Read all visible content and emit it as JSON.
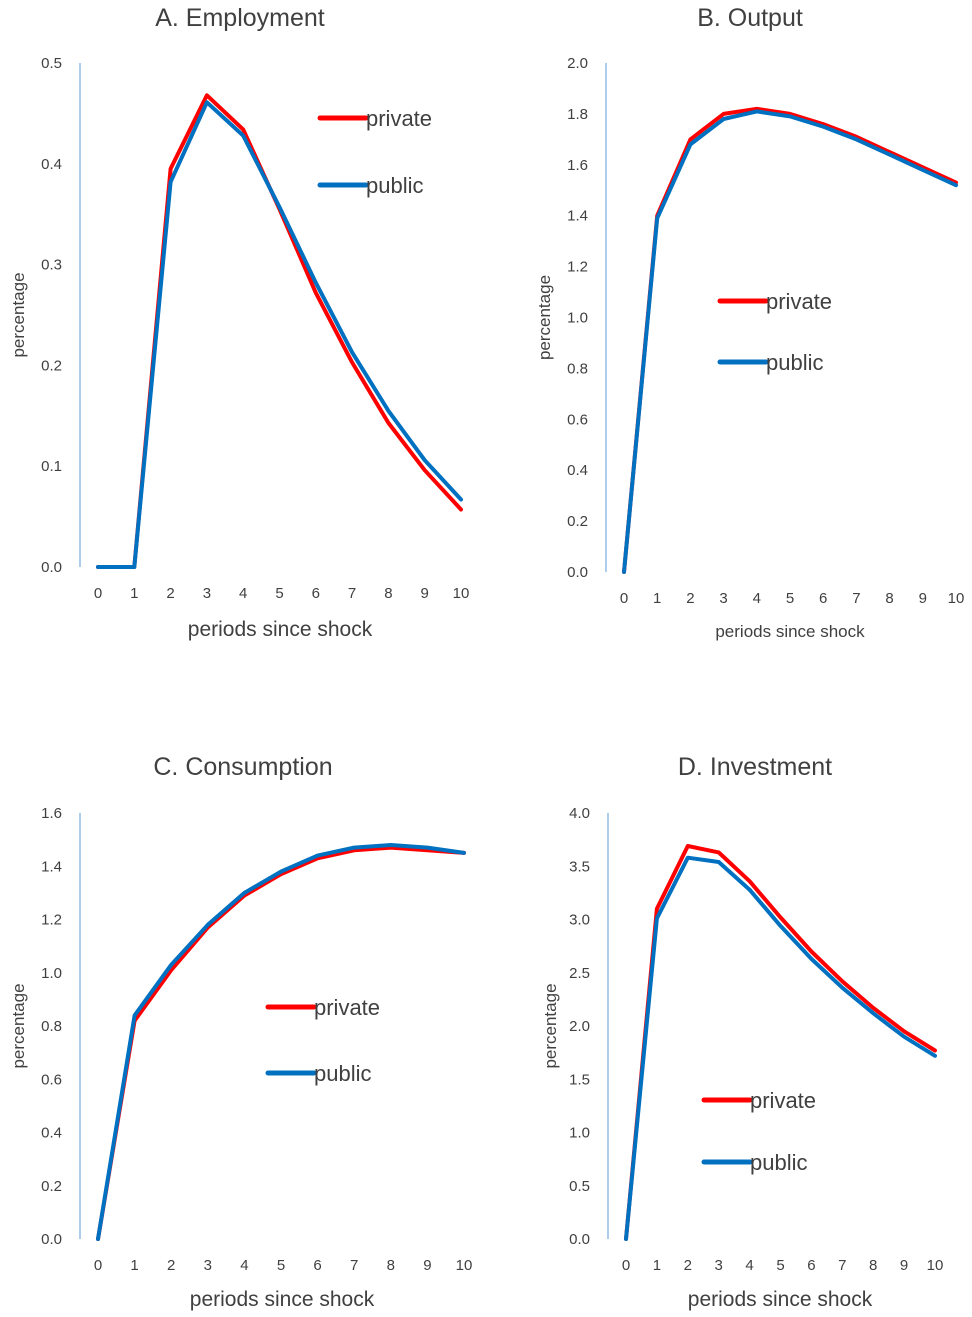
{
  "chart_data": [
    {
      "type": "line",
      "title": "A. Employment",
      "xlabel": "periods since shock",
      "ylabel": "percentage",
      "x": [
        0,
        1,
        2,
        3,
        4,
        5,
        6,
        7,
        8,
        9,
        10
      ],
      "ylim": [
        0,
        0.5
      ],
      "yticks": [
        "0.0",
        "0.1",
        "0.2",
        "0.3",
        "0.4",
        "0.5"
      ],
      "grid": false,
      "series": [
        {
          "name": "private",
          "color": "#ff0000",
          "values": [
            0,
            0,
            0.395,
            0.468,
            0.434,
            0.355,
            0.272,
            0.203,
            0.143,
            0.096,
            0.057
          ]
        },
        {
          "name": "public",
          "color": "#0070c0",
          "values": [
            0,
            0,
            0.382,
            0.461,
            0.428,
            0.357,
            0.282,
            0.213,
            0.155,
            0.106,
            0.067
          ]
        }
      ]
    },
    {
      "type": "line",
      "title": "B. Output",
      "xlabel": "periods since shock",
      "ylabel": "percentage",
      "x": [
        0,
        1,
        2,
        3,
        4,
        5,
        6,
        7,
        8,
        9,
        10
      ],
      "ylim": [
        0,
        2.0
      ],
      "yticks": [
        "0.0",
        "0.2",
        "0.4",
        "0.6",
        "0.8",
        "1.0",
        "1.2",
        "1.4",
        "1.6",
        "1.8",
        "2.0"
      ],
      "grid": false,
      "series": [
        {
          "name": "private",
          "color": "#ff0000",
          "values": [
            0,
            1.4,
            1.7,
            1.8,
            1.82,
            1.8,
            1.76,
            1.71,
            1.65,
            1.59,
            1.53
          ]
        },
        {
          "name": "public",
          "color": "#0070c0",
          "values": [
            0,
            1.39,
            1.68,
            1.78,
            1.81,
            1.79,
            1.75,
            1.7,
            1.64,
            1.58,
            1.52
          ]
        }
      ]
    },
    {
      "type": "line",
      "title": "C. Consumption",
      "xlabel": "periods since shock",
      "ylabel": "percentage",
      "x": [
        0,
        1,
        2,
        3,
        4,
        5,
        6,
        7,
        8,
        9,
        10
      ],
      "ylim": [
        0,
        1.6
      ],
      "yticks": [
        "0.0",
        "0.2",
        "0.4",
        "0.6",
        "0.8",
        "1.0",
        "1.2",
        "1.4",
        "1.6"
      ],
      "grid": false,
      "series": [
        {
          "name": "private",
          "color": "#ff0000",
          "values": [
            0,
            0.82,
            1.01,
            1.17,
            1.29,
            1.37,
            1.43,
            1.46,
            1.47,
            1.46,
            1.45
          ]
        },
        {
          "name": "public",
          "color": "#0070c0",
          "values": [
            0,
            0.84,
            1.03,
            1.18,
            1.3,
            1.38,
            1.44,
            1.47,
            1.48,
            1.47,
            1.45
          ]
        }
      ]
    },
    {
      "type": "line",
      "title": "D. Investment",
      "xlabel": "periods since shock",
      "ylabel": "percentage",
      "x": [
        0,
        1,
        2,
        3,
        4,
        5,
        6,
        7,
        8,
        9,
        10
      ],
      "ylim": [
        0,
        4.0
      ],
      "yticks": [
        "0.0",
        "0.5",
        "1.0",
        "1.5",
        "2.0",
        "2.5",
        "3.0",
        "3.5",
        "4.0"
      ],
      "grid": false,
      "series": [
        {
          "name": "private",
          "color": "#ff0000",
          "values": [
            0,
            3.1,
            3.69,
            3.63,
            3.36,
            3.02,
            2.7,
            2.42,
            2.17,
            1.95,
            1.77
          ]
        },
        {
          "name": "public",
          "color": "#0070c0",
          "values": [
            0,
            3.01,
            3.58,
            3.54,
            3.28,
            2.94,
            2.63,
            2.36,
            2.12,
            1.9,
            1.72
          ]
        }
      ]
    }
  ]
}
